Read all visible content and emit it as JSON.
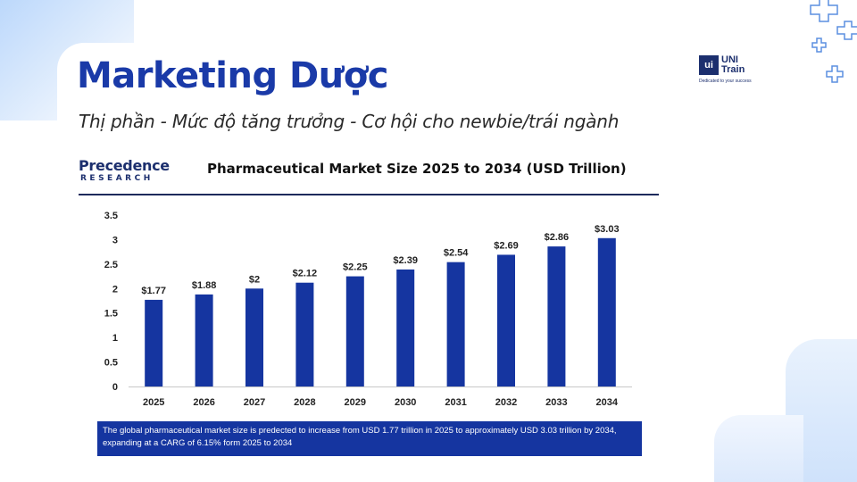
{
  "header": {
    "title": "Marketing Dược",
    "subtitle": "Thị phần - Mức độ tăng trưởng - Cơ hội cho newbie/trái ngành"
  },
  "brand": {
    "mark": "ui",
    "name_line1": "UNI",
    "name_line2": "Train",
    "tagline": "Dedicated to your success"
  },
  "source_logo": {
    "name": "Precedence",
    "sub": "RESEARCH"
  },
  "colors": {
    "accent": "#1a3aa8",
    "bar": "#1535a0",
    "note_bg": "#1535a0"
  },
  "chart_data": {
    "type": "bar",
    "title": "Pharmaceutical Market Size 2025 to 2034 (USD Trillion)",
    "xlabel": "",
    "ylabel": "",
    "categories": [
      "2025",
      "2026",
      "2027",
      "2028",
      "2029",
      "2030",
      "2031",
      "2032",
      "2033",
      "2034"
    ],
    "values": [
      1.77,
      1.88,
      2,
      2.12,
      2.25,
      2.39,
      2.54,
      2.69,
      2.86,
      3.03
    ],
    "data_labels": [
      "$1.77",
      "$1.88",
      "$2",
      "$2.12",
      "$2.25",
      "$2.39",
      "$2.54",
      "$2.69",
      "$2.86",
      "$3.03"
    ],
    "yticks": [
      "0",
      "0.5",
      "1",
      "1.5",
      "2",
      "2.5",
      "3",
      "3.5"
    ],
    "ylim": [
      0,
      3.5
    ],
    "grid": false,
    "legend": "none"
  },
  "note": "The global pharmaceutical market size is predected to increase from USD 1.77 trillion in 2025 to approximately USD 3.03 trillion by 2034, expanding at a CARG of 6.15% form 2025 to 2034"
}
